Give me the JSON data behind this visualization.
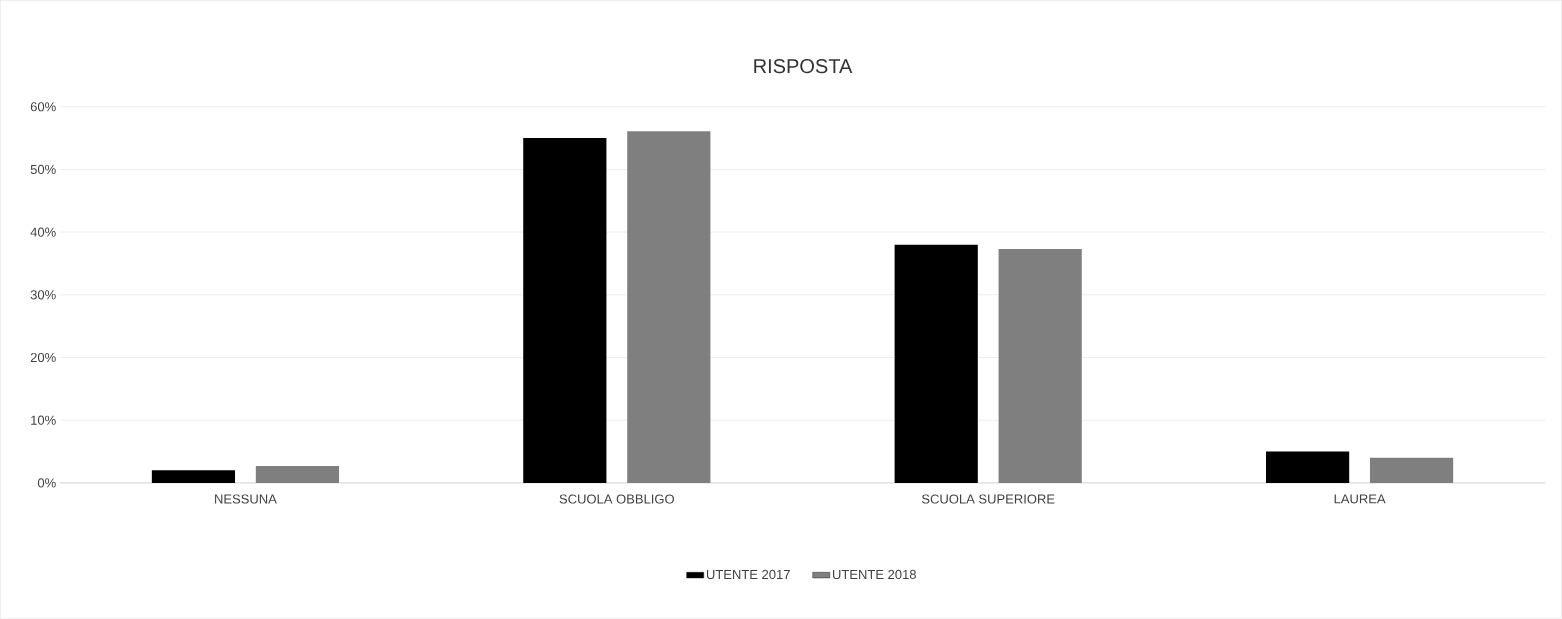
{
  "chart_data": {
    "type": "bar",
    "title": "RISPOSTA",
    "categories": [
      "NESSUNA",
      "SCUOLA OBBLIGO",
      "SCUOLA SUPERIORE",
      "LAUREA"
    ],
    "series": [
      {
        "name": "UTENTE 2017",
        "color": "#000000",
        "values": [
          2,
          55,
          38,
          5
        ]
      },
      {
        "name": "UTENTE 2018",
        "color": "#7f7f7f",
        "values": [
          2.7,
          56.1,
          37.3,
          4
        ]
      }
    ],
    "ylim": [
      0,
      60
    ],
    "yticks": [
      {
        "value": 0,
        "label": "0%"
      },
      {
        "value": 10,
        "label": "10%"
      },
      {
        "value": 20,
        "label": "20%"
      },
      {
        "value": 30,
        "label": "30%"
      },
      {
        "value": 40,
        "label": "40%"
      },
      {
        "value": 50,
        "label": "50%"
      },
      {
        "value": 60,
        "label": "60%"
      }
    ],
    "grid": "y",
    "legend": "bottom"
  }
}
